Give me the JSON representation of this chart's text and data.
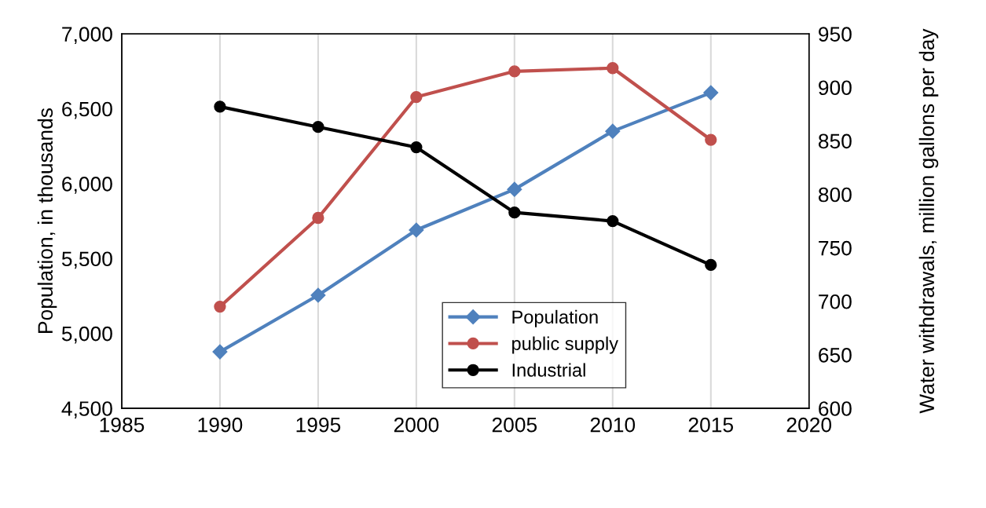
{
  "chart_data": {
    "type": "line",
    "ylabel": "Population, in thousands",
    "y2label": "Water withdrawals, million gallons per day",
    "x": [
      1990,
      1995,
      2000,
      2005,
      2010,
      2015
    ],
    "series": [
      {
        "name": "Population",
        "color": "#4f81bd",
        "marker": "diamond",
        "values": [
          4877,
          5255,
          5690,
          5962,
          6350,
          6607
        ]
      },
      {
        "name": "public supply",
        "color": "#c0504d",
        "marker": "circle",
        "axis": "y2",
        "values": [
          695,
          778,
          891,
          915,
          918,
          851
        ]
      },
      {
        "name": "Industrial",
        "color": "#000000",
        "marker": "circle",
        "axis": "y2",
        "values": [
          882,
          863,
          844,
          783,
          775,
          734
        ]
      }
    ],
    "xlim": [
      1985,
      2020
    ],
    "xticks": [
      1985,
      1990,
      1995,
      2000,
      2005,
      2010,
      2015,
      2020
    ],
    "ylim": [
      4500,
      7000
    ],
    "yticks": [
      {
        "value": 4500,
        "label": "4,500"
      },
      {
        "value": 5000,
        "label": "5,000"
      },
      {
        "value": 5500,
        "label": "5,500"
      },
      {
        "value": 6000,
        "label": "6,000"
      },
      {
        "value": 6500,
        "label": "6,500"
      },
      {
        "value": 7000,
        "label": "7,000"
      }
    ],
    "y2lim": [
      600,
      950
    ],
    "y2ticks": [
      600,
      650,
      700,
      750,
      800,
      850,
      900,
      950
    ],
    "grid": "x",
    "legend": "bottom",
    "line_style": "solid"
  }
}
